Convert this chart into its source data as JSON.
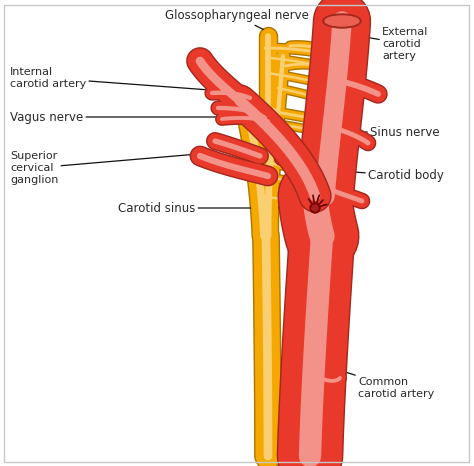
{
  "background_color": "#ffffff",
  "border_color": "#c8c8c8",
  "red_color": "#e8392a",
  "red_light_color": "#f07060",
  "red_dark_color": "#c02010",
  "orange_color": "#f5a800",
  "orange_light_color": "#ffc840",
  "orange_dark_color": "#d08000",
  "text_color": "#2a2a2a",
  "labels": {
    "glossopharyngeal_nerve": "Glossopharyngeal nerve",
    "internal_carotid_artery": "Internal\ncarotid artery",
    "vagus_nerve": "Vagus nerve",
    "superior_cervical_ganglion": "Superior\ncervical\nganglion",
    "carotid_sinus": "Carotid sinus",
    "external_carotid_artery": "External\ncarotid\nartery",
    "sinus_nerve": "Sinus nerve",
    "carotid_body": "Carotid body",
    "common_carotid_artery": "Common\ncarotid artery"
  }
}
